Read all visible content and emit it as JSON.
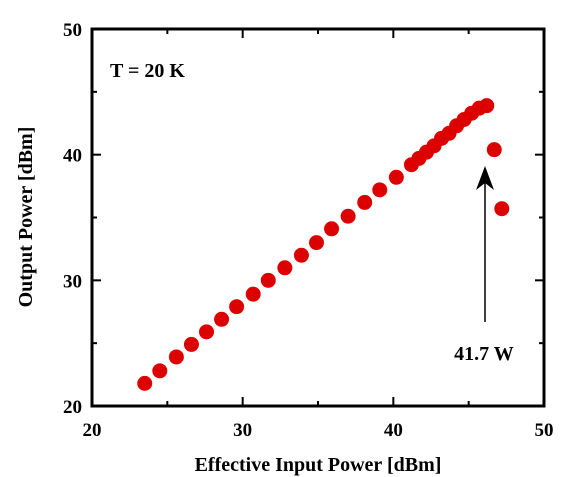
{
  "chart_data": {
    "type": "scatter",
    "xlabel": "Effective Input Power [dBm]",
    "ylabel": "Output Power [dBm]",
    "xlim": [
      20,
      50
    ],
    "ylim": [
      20,
      50
    ],
    "x_ticks": [
      "20",
      "30",
      "40",
      "50"
    ],
    "y_ticks": [
      "20",
      "30",
      "40",
      "50"
    ],
    "grid": false,
    "annotation_condition": "T = 20 K",
    "annotation_point": "41.7 W",
    "marker_color": "#dd0000",
    "series": [
      {
        "x": [
          23.5,
          24.5,
          25.6,
          26.6,
          27.6,
          28.6,
          29.6,
          30.7,
          31.7,
          32.8,
          33.9,
          34.9,
          35.9,
          37.0,
          38.1,
          39.1,
          40.2,
          41.2,
          41.7,
          42.2,
          42.7,
          43.2,
          43.7,
          44.2,
          44.7,
          45.2,
          45.7,
          46.2,
          46.7,
          47.2
        ],
        "y": [
          21.8,
          22.8,
          23.9,
          24.9,
          25.9,
          26.9,
          27.9,
          28.9,
          30.0,
          31.0,
          32.0,
          33.0,
          34.1,
          35.1,
          36.2,
          37.2,
          38.2,
          39.2,
          39.7,
          40.2,
          40.7,
          41.3,
          41.7,
          42.3,
          42.8,
          43.3,
          43.7,
          43.9,
          40.4,
          35.7
        ]
      }
    ]
  }
}
